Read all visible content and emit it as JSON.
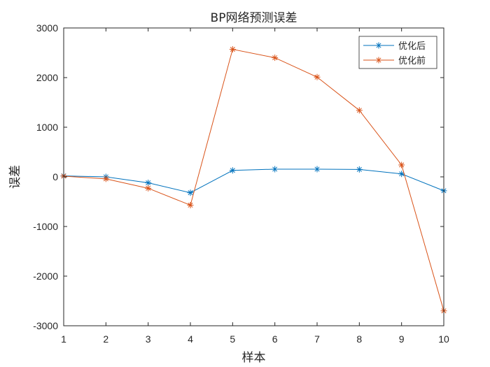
{
  "chart_data": {
    "type": "line",
    "title": "BP网络预测误差",
    "xlabel": "样本",
    "ylabel": "误差",
    "x": [
      1,
      2,
      3,
      4,
      5,
      6,
      7,
      8,
      9,
      10
    ],
    "xlim": [
      1,
      10
    ],
    "ylim": [
      -3000,
      3000
    ],
    "xticks": [
      "1",
      "2",
      "3",
      "4",
      "5",
      "6",
      "7",
      "8",
      "9",
      "10"
    ],
    "yticks": [
      "-3000",
      "-2000",
      "-1000",
      "0",
      "1000",
      "2000",
      "3000"
    ],
    "grid": false,
    "legend_position": "top-right",
    "marker": "*",
    "series": [
      {
        "name": "优化后",
        "color": "#0072BD",
        "values": [
          20,
          0,
          -120,
          -320,
          130,
          155,
          155,
          150,
          60,
          -280
        ]
      },
      {
        "name": "优化前",
        "color": "#D95319",
        "values": [
          15,
          -40,
          -230,
          -570,
          2570,
          2400,
          2010,
          1340,
          240,
          -2700
        ]
      }
    ]
  }
}
